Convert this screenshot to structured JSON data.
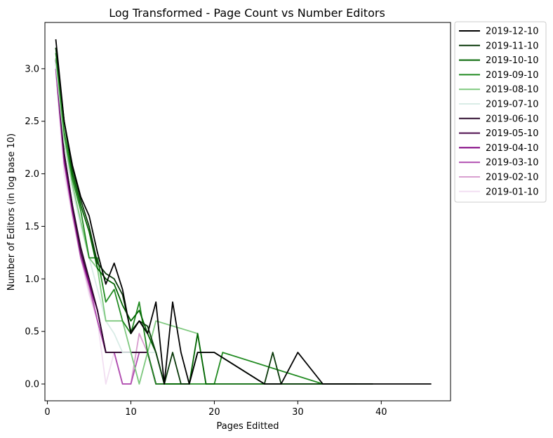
{
  "chart_data": {
    "type": "line",
    "title": "Log Transformed - Page Count vs Number Editors",
    "xlabel": "Pages Editted",
    "ylabel": "Number of Editors (in log base 10)",
    "xlim": [
      -0.3,
      48.3
    ],
    "ylim": [
      -0.16,
      3.44
    ],
    "xticks": [
      0,
      10,
      20,
      30,
      40
    ],
    "yticks": [
      0.0,
      0.5,
      1.0,
      1.5,
      2.0,
      2.5,
      3.0
    ],
    "xtick_labels": [
      "0",
      "10",
      "20",
      "30",
      "40"
    ],
    "ytick_labels": [
      "0.0",
      "0.5",
      "1.0",
      "1.5",
      "2.0",
      "2.5",
      "3.0"
    ],
    "grid": false,
    "legend_position": "outside-top-right",
    "series": [
      {
        "name": "2019-12-10",
        "color": "#000000",
        "x": [
          1,
          2,
          3,
          4,
          5,
          6,
          7,
          8,
          9,
          10,
          11,
          12,
          13,
          14,
          15,
          16,
          17,
          18,
          19,
          20,
          26,
          27,
          28,
          30,
          33,
          46
        ],
        "y": [
          3.28,
          2.5,
          2.08,
          1.78,
          1.6,
          1.25,
          0.95,
          1.15,
          0.9,
          0.48,
          0.6,
          0.48,
          0.78,
          0.0,
          0.78,
          0.3,
          0.0,
          0.3,
          0.3,
          0.3,
          0.0,
          0.0,
          0.0,
          0.3,
          0.0,
          0.0
        ]
      },
      {
        "name": "2019-11-10",
        "color": "#0b3a0b",
        "x": [
          1,
          2,
          3,
          4,
          5,
          6,
          7,
          8,
          9,
          10,
          11,
          12,
          13,
          14,
          15,
          16,
          17,
          18,
          19,
          20,
          26,
          27,
          28,
          30,
          33,
          39
        ],
        "y": [
          3.2,
          2.5,
          2.05,
          1.75,
          1.5,
          1.15,
          1.05,
          1.0,
          0.85,
          0.5,
          0.6,
          0.55,
          0.3,
          0.0,
          0.3,
          0.0,
          0.0,
          0.3,
          0.3,
          0.3,
          0.0,
          0.3,
          0.0,
          0.0,
          0.0,
          0.0
        ]
      },
      {
        "name": "2019-10-10",
        "color": "#006400",
        "x": [
          1,
          2,
          3,
          4,
          5,
          6,
          7,
          8,
          9,
          10,
          11,
          12,
          13,
          14,
          15,
          16,
          17,
          18,
          19,
          20,
          33
        ],
        "y": [
          3.2,
          2.5,
          2.0,
          1.7,
          1.45,
          1.1,
          1.0,
          0.95,
          0.75,
          0.6,
          0.7,
          0.48,
          0.3,
          0.0,
          0.0,
          0.0,
          0.0,
          0.48,
          0.0,
          0.0,
          0.0
        ]
      },
      {
        "name": "2019-09-10",
        "color": "#228b22",
        "x": [
          1,
          2,
          3,
          4,
          5,
          6,
          7,
          8,
          9,
          10,
          11,
          12,
          13,
          14,
          15,
          16,
          17,
          18,
          19,
          20,
          21,
          33,
          37
        ],
        "y": [
          3.15,
          2.4,
          1.95,
          1.65,
          1.2,
          1.2,
          0.78,
          0.9,
          0.6,
          0.48,
          0.78,
          0.3,
          0.0,
          0.0,
          0.0,
          0.0,
          0.0,
          0.0,
          0.0,
          0.0,
          0.3,
          0.0,
          0.0
        ]
      },
      {
        "name": "2019-08-10",
        "color": "#7fc97f",
        "x": [
          1,
          2,
          3,
          4,
          5,
          6,
          7,
          8,
          9,
          10,
          11,
          12,
          13,
          18,
          19,
          20
        ],
        "y": [
          3.1,
          2.35,
          1.9,
          1.55,
          1.2,
          1.1,
          0.6,
          0.6,
          0.6,
          0.3,
          0.0,
          0.3,
          0.6,
          0.48,
          0.0,
          0.0
        ]
      },
      {
        "name": "2019-07-10",
        "color": "#d9ece6",
        "x": [
          1,
          2,
          3,
          4,
          5,
          6,
          7,
          8,
          9,
          10,
          11,
          12,
          13,
          14,
          15,
          16,
          17
        ],
        "y": [
          3.05,
          2.3,
          1.85,
          1.5,
          1.2,
          0.9,
          0.6,
          0.48,
          0.3,
          0.3,
          0.0,
          0.3,
          0.3,
          0.0,
          0.0,
          0.0,
          0.0
        ]
      },
      {
        "name": "2019-06-10",
        "color": "#2d0a2d",
        "x": [
          1,
          2,
          3,
          4,
          5,
          6,
          7,
          8,
          9,
          10,
          11,
          12,
          13,
          14
        ],
        "y": [
          3.09,
          2.2,
          1.7,
          1.3,
          1.0,
          0.7,
          0.3,
          0.3,
          0.3,
          0.3,
          0.3,
          0.3,
          0.0,
          0.0
        ]
      },
      {
        "name": "2019-05-10",
        "color": "#4b0a4b",
        "x": [
          1,
          2,
          3,
          4,
          5,
          6,
          7,
          8,
          9,
          10,
          11,
          12,
          13,
          14
        ],
        "y": [
          3.08,
          2.2,
          1.7,
          1.25,
          1.0,
          0.7,
          0.3,
          0.3,
          0.3,
          0.3,
          0.3,
          0.3,
          0.0,
          0.0
        ]
      },
      {
        "name": "2019-04-10",
        "color": "#800080",
        "x": [
          1,
          2,
          3,
          4,
          5,
          6,
          7,
          8,
          9,
          10,
          11,
          12,
          13
        ],
        "y": [
          3.05,
          2.15,
          1.65,
          1.25,
          0.95,
          0.7,
          0.3,
          0.3,
          0.3,
          0.3,
          0.3,
          0.3,
          0.0
        ]
      },
      {
        "name": "2019-03-10",
        "color": "#b04db0",
        "x": [
          1,
          2,
          3,
          4,
          5,
          6,
          7,
          8,
          9,
          10,
          11,
          12,
          13
        ],
        "y": [
          3.0,
          2.1,
          1.65,
          1.2,
          0.95,
          0.6,
          0.3,
          0.3,
          0.0,
          0.0,
          0.3,
          0.3,
          0.0
        ]
      },
      {
        "name": "2019-02-10",
        "color": "#d9a0d0",
        "x": [
          1,
          2,
          3,
          4,
          5,
          6,
          7,
          8,
          9,
          10,
          11,
          12,
          13
        ],
        "y": [
          3.0,
          2.1,
          1.6,
          1.2,
          0.9,
          0.6,
          0.3,
          0.3,
          0.0,
          0.0,
          0.48,
          0.3,
          0.0
        ]
      },
      {
        "name": "2019-01-10",
        "color": "#f2dff2",
        "x": [
          1,
          2,
          3,
          4,
          5,
          6,
          7,
          8,
          9,
          10,
          11,
          12,
          13
        ],
        "y": [
          2.95,
          2.0,
          1.6,
          1.2,
          0.85,
          0.6,
          0.0,
          0.3,
          0.0,
          0.0,
          0.48,
          0.3,
          0.0
        ]
      }
    ]
  }
}
